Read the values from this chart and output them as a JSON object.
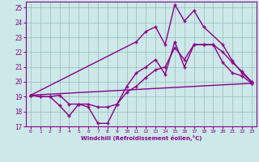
{
  "xlabel": "Windchill (Refroidissement éolien,°C)",
  "ylabel": "",
  "xlim_min": -0.5,
  "xlim_max": 23.5,
  "ylim_min": 17.0,
  "ylim_max": 25.4,
  "xticks": [
    0,
    1,
    2,
    3,
    4,
    5,
    6,
    7,
    8,
    9,
    10,
    11,
    12,
    13,
    14,
    15,
    16,
    17,
    18,
    19,
    20,
    21,
    22,
    23
  ],
  "yticks": [
    17,
    18,
    19,
    20,
    21,
    22,
    23,
    24,
    25
  ],
  "bg_color": "#cce8e8",
  "line_color": "#880088",
  "grid_color": "#99bbbb",
  "line1_x": [
    0,
    1,
    2,
    3,
    4,
    5,
    6,
    7,
    8,
    9,
    10,
    11,
    12,
    13,
    14,
    15,
    16,
    17,
    18,
    19,
    20,
    21,
    22,
    23
  ],
  "line1_y": [
    19.1,
    19.0,
    19.0,
    18.4,
    17.7,
    18.5,
    18.3,
    17.2,
    17.2,
    18.5,
    19.7,
    20.6,
    21.0,
    21.5,
    20.5,
    22.7,
    21.0,
    22.5,
    22.5,
    22.5,
    21.3,
    20.6,
    20.4,
    19.9
  ],
  "line2_x": [
    0,
    1,
    2,
    3,
    4,
    5,
    6,
    7,
    8,
    9,
    10,
    11,
    12,
    13,
    14,
    15,
    16,
    17,
    18,
    19,
    20,
    21,
    22,
    23
  ],
  "line2_y": [
    19.1,
    19.0,
    19.0,
    19.1,
    18.5,
    18.5,
    18.5,
    18.3,
    18.3,
    18.5,
    19.3,
    19.7,
    20.3,
    20.8,
    21.0,
    22.3,
    21.5,
    22.5,
    22.5,
    22.5,
    22.0,
    21.3,
    20.7,
    20.0
  ],
  "line3_x": [
    0,
    11,
    12,
    13,
    14,
    15,
    16,
    17,
    18,
    20,
    21,
    22,
    23
  ],
  "line3_y": [
    19.1,
    22.7,
    23.4,
    23.7,
    22.5,
    25.2,
    24.1,
    24.8,
    23.7,
    22.5,
    21.4,
    20.6,
    20.0
  ],
  "line4_x": [
    0,
    23
  ],
  "line4_y": [
    19.1,
    19.9
  ],
  "marker_size": 2.5,
  "line_width": 1.0
}
